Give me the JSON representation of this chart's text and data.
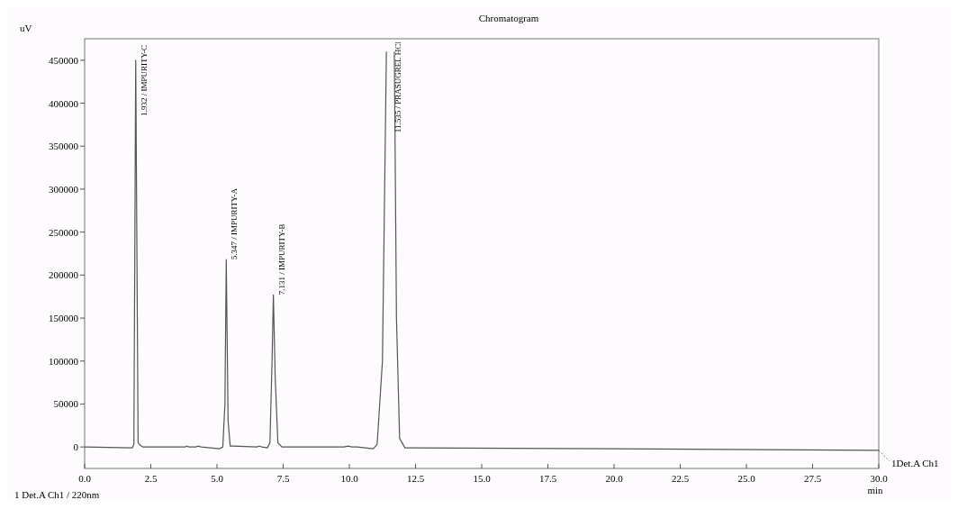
{
  "chart_data": {
    "type": "line",
    "title": "Chromatogram",
    "xlabel": "min",
    "ylabel": "uV",
    "x": [
      0,
      1.8,
      1.86,
      1.93,
      2.02,
      2.1,
      2.2,
      3.8,
      3.85,
      3.95,
      4.2,
      4.28,
      4.4,
      5.1,
      5.22,
      5.3,
      5.35,
      5.42,
      5.5,
      5.6,
      6.5,
      6.6,
      6.7,
      6.9,
      7.0,
      7.08,
      7.13,
      7.2,
      7.3,
      7.45,
      9.8,
      9.95,
      10.1,
      10.3,
      10.9,
      11.05,
      11.25,
      11.4,
      11.42,
      11.68,
      11.7,
      11.78,
      11.9,
      12.1,
      12.25,
      20,
      30
    ],
    "series": [
      {
        "color": "#555555",
        "values": [
          0,
          -1000,
          3000,
          450000,
          5000,
          2000,
          0,
          0,
          1000,
          0,
          0,
          1000,
          0,
          -2000,
          0,
          50000,
          218000,
          30000,
          1000,
          1000,
          0,
          1000,
          0,
          -1000,
          5000,
          100000,
          177000,
          80000,
          5000,
          0,
          0,
          1000,
          0,
          0,
          -2000,
          3000,
          100000,
          460000,
          null,
          null,
          460000,
          150000,
          10000,
          -1000,
          -1000,
          -2000,
          -4000
        ]
      }
    ],
    "xlim": [
      0,
      30
    ],
    "xticks": [
      {
        "value": 0,
        "label": "0.0"
      },
      {
        "value": 2.5,
        "label": "2.5"
      },
      {
        "value": 5,
        "label": "5.0"
      },
      {
        "value": 7.5,
        "label": "7.5"
      },
      {
        "value": 10,
        "label": "10.0"
      },
      {
        "value": 12.5,
        "label": "12.5"
      },
      {
        "value": 15,
        "label": "15.0"
      },
      {
        "value": 17.5,
        "label": "17.5"
      },
      {
        "value": 20,
        "label": "20.0"
      },
      {
        "value": 22.5,
        "label": "22.5"
      },
      {
        "value": 25,
        "label": "25.0"
      },
      {
        "value": 27.5,
        "label": "27.5"
      },
      {
        "value": 30,
        "label": "30.0"
      }
    ],
    "ylim": [
      -25000,
      475000
    ],
    "yticks": [
      0,
      50000,
      100000,
      150000,
      200000,
      250000,
      300000,
      350000,
      400000,
      450000
    ],
    "grid": false,
    "marker": "none",
    "line_style": "solid",
    "annotations": [
      {
        "text": "1.932 / IMPURITY-C",
        "x": 1.932,
        "y": 450000
      },
      {
        "text": "5.347 / IMPURITY-A",
        "x": 5.347,
        "y": 218000
      },
      {
        "text": "7.131 / IMPURITY-B",
        "x": 7.131,
        "y": 177000
      },
      {
        "text": "11.535 / PRASUGREL HCl",
        "x": 11.535
      },
      {
        "text": "1Det.A Ch1",
        "x": 30,
        "y": -4000
      },
      "1 Det.A Ch1 / 220nm"
    ]
  }
}
